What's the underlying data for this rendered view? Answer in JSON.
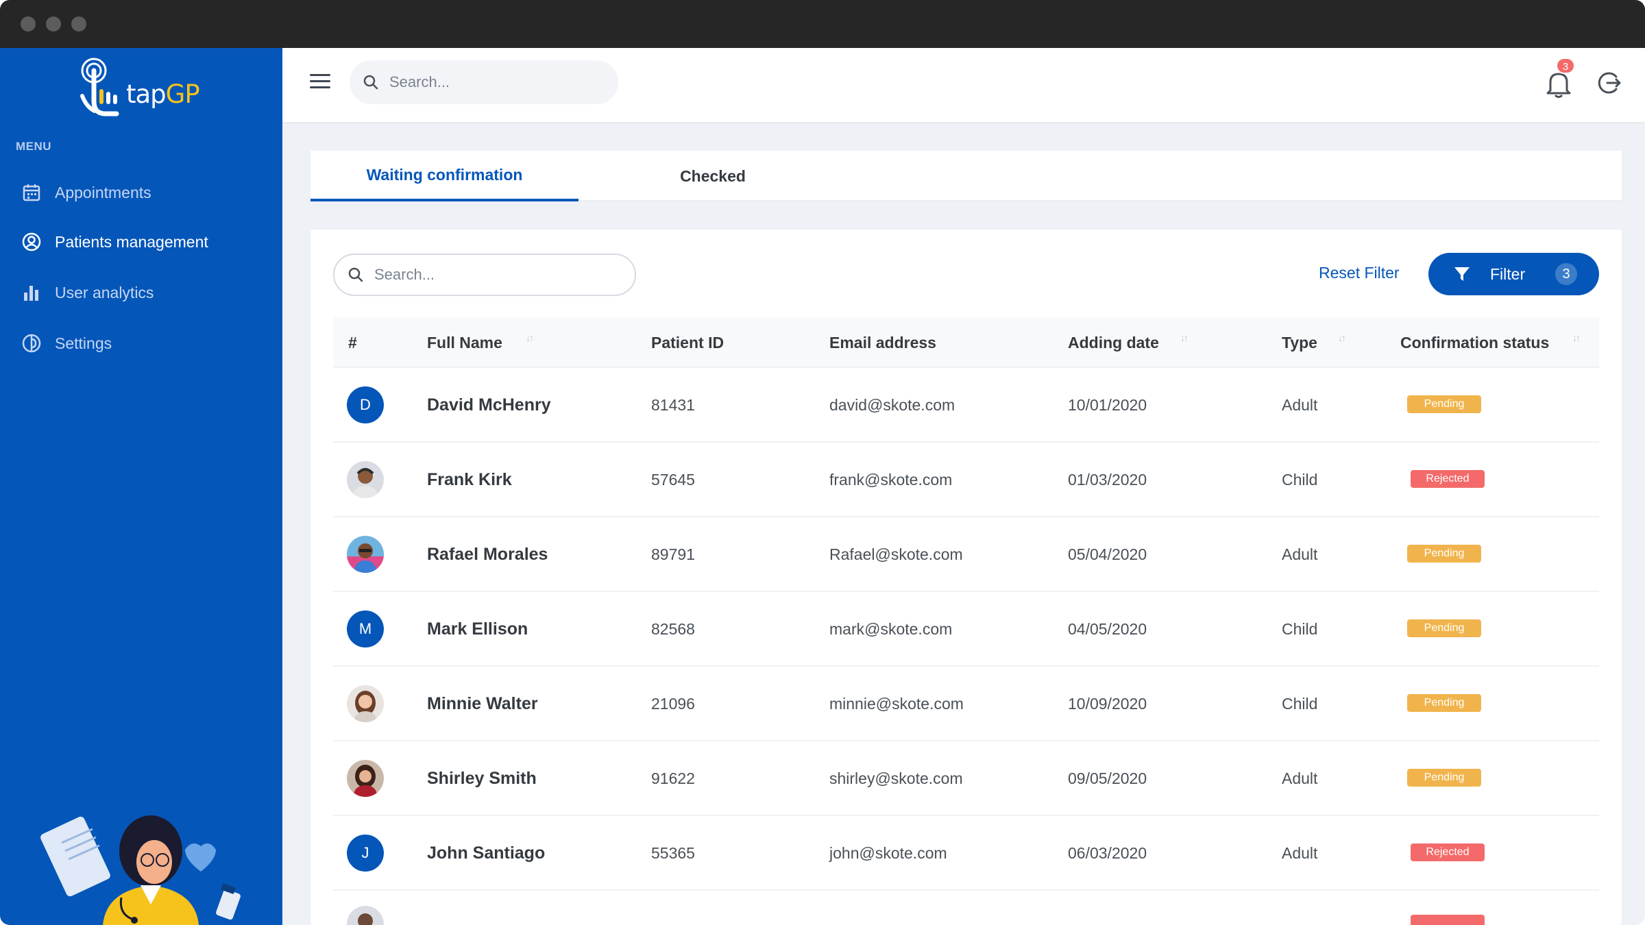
{
  "app": {
    "logo_text_a": "tap",
    "logo_text_b": "GP"
  },
  "sidebar": {
    "menu_label": "MENU",
    "items": [
      {
        "label": "Appointments",
        "icon": "calendar-icon"
      },
      {
        "label": "Patients management",
        "icon": "user-circle-icon"
      },
      {
        "label": "User analytics",
        "icon": "bar-chart-icon"
      },
      {
        "label": "Settings",
        "icon": "settings-icon"
      }
    ]
  },
  "topbar": {
    "search_placeholder": "Search...",
    "notification_count": "3"
  },
  "tabs": [
    {
      "label": "Waiting confirmation",
      "active": true
    },
    {
      "label": "Checked",
      "active": false
    }
  ],
  "table": {
    "search_placeholder": "Search...",
    "reset_filter": "Reset Filter",
    "filter_label": "Filter",
    "filter_count": "3",
    "headers": {
      "index": "#",
      "full_name": "Full Name",
      "patient_id": "Patient ID",
      "email": "Email address",
      "adding_date": "Adding date",
      "type": "Type",
      "status": "Confirmation status"
    },
    "rows": [
      {
        "avatar": "D",
        "avatar_kind": "initial",
        "name": "David McHenry",
        "id": "81431",
        "email": "david@skote.com",
        "date": "10/01/2020",
        "type": "Adult",
        "status": "Pending"
      },
      {
        "avatar": "",
        "avatar_kind": "photo",
        "name": "Frank Kirk",
        "id": "57645",
        "email": "frank@skote.com",
        "date": "01/03/2020",
        "type": "Child",
        "status": "Rejected"
      },
      {
        "avatar": "",
        "avatar_kind": "photo",
        "name": "Rafael Morales",
        "id": "89791",
        "email": "Rafael@skote.com",
        "date": "05/04/2020",
        "type": "Adult",
        "status": "Pending"
      },
      {
        "avatar": "M",
        "avatar_kind": "initial",
        "name": "Mark Ellison",
        "id": "82568",
        "email": "mark@skote.com",
        "date": "04/05/2020",
        "type": "Child",
        "status": "Pending"
      },
      {
        "avatar": "",
        "avatar_kind": "photo",
        "name": "Minnie Walter",
        "id": "21096",
        "email": "minnie@skote.com",
        "date": "10/09/2020",
        "type": "Child",
        "status": "Pending"
      },
      {
        "avatar": "",
        "avatar_kind": "photo",
        "name": "Shirley Smith",
        "id": "91622",
        "email": "shirley@skote.com",
        "date": "09/05/2020",
        "type": "Adult",
        "status": "Pending"
      },
      {
        "avatar": "J",
        "avatar_kind": "initial",
        "name": "John Santiago",
        "id": "55365",
        "email": "john@skote.com",
        "date": "06/03/2020",
        "type": "Adult",
        "status": "Rejected"
      }
    ]
  },
  "colors": {
    "primary": "#0556b9",
    "pending": "#f1b44c",
    "rejected": "#f46a6a",
    "logo_accent": "#f6c31c"
  }
}
